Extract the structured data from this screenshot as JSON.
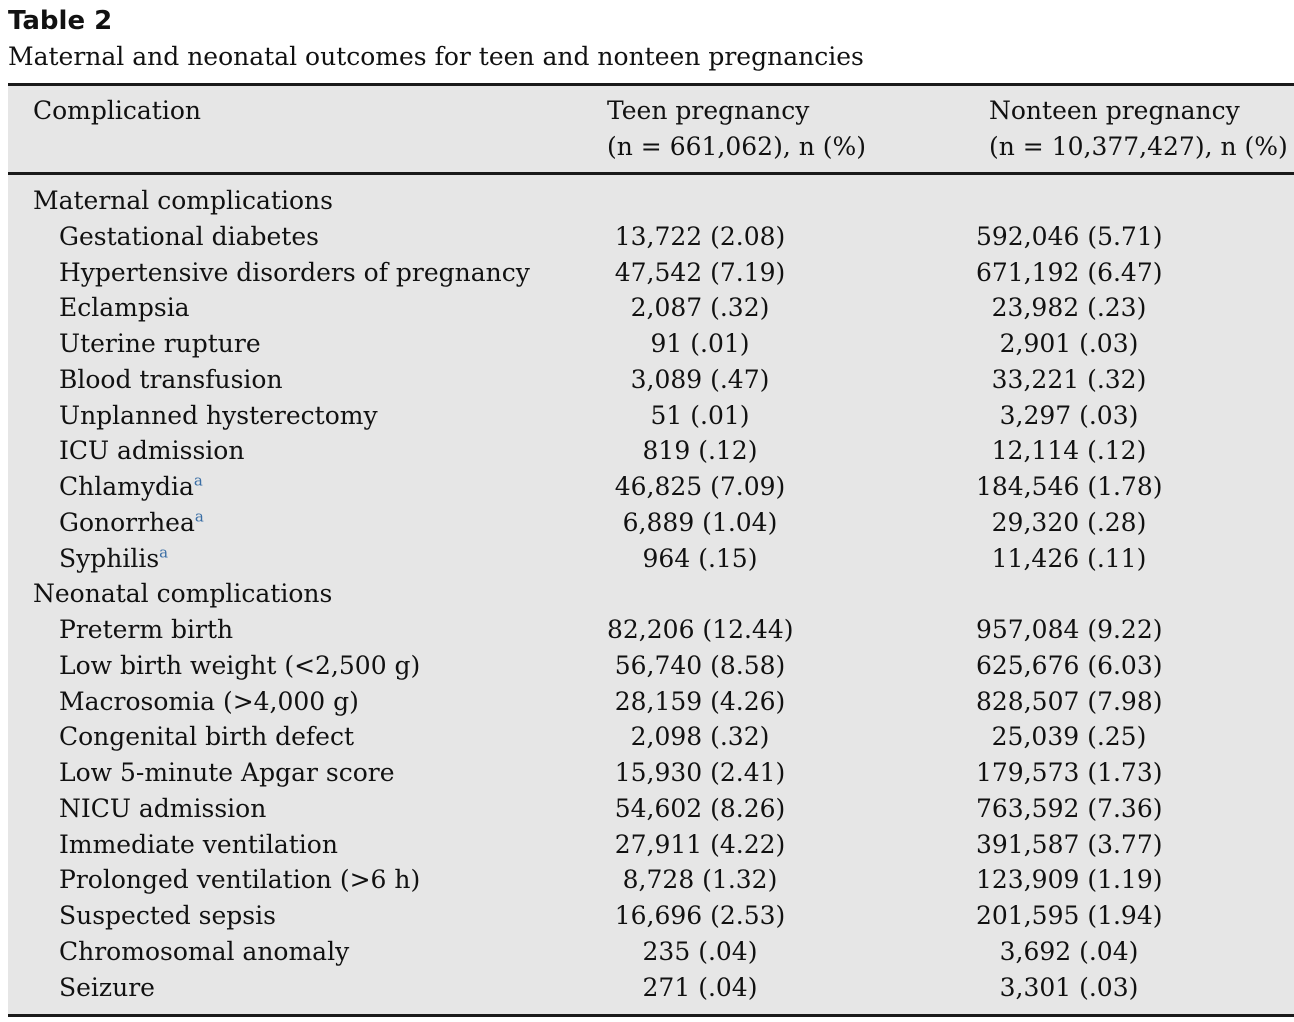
{
  "caption": {
    "label": "Table 2",
    "title": "Maternal and neonatal outcomes for teen and nonteen pregnancies"
  },
  "header": {
    "col1": "Complication",
    "col2_line1": "Teen pregnancy",
    "col2_line2": "(n = 661,062), n (%)",
    "col3_line1": "Nonteen pregnancy",
    "col3_line2": "(n = 10,377,427), n (%)"
  },
  "footnote_marker": "a",
  "sections": [
    {
      "title": "Maternal complications",
      "rows": [
        {
          "label": "Gestational diabetes",
          "teen": "13,722 (2.08)",
          "nonteen": "592,046 (5.71)"
        },
        {
          "label": "Hypertensive disorders of pregnancy",
          "teen": "47,542 (7.19)",
          "nonteen": "671,192 (6.47)"
        },
        {
          "label": "Eclampsia",
          "teen": "2,087 (.32)",
          "nonteen": "23,982 (.23)"
        },
        {
          "label": "Uterine rupture",
          "teen": "91 (.01)",
          "nonteen": "2,901 (.03)"
        },
        {
          "label": "Blood transfusion",
          "teen": "3,089 (.47)",
          "nonteen": "33,221 (.32)"
        },
        {
          "label": "Unplanned hysterectomy",
          "teen": "51 (.01)",
          "nonteen": "3,297 (.03)"
        },
        {
          "label": "ICU admission",
          "teen": "819 (.12)",
          "nonteen": "12,114 (.12)"
        },
        {
          "label": "Chlamydia",
          "teen": "46,825 (7.09)",
          "nonteen": "184,546 (1.78)"
        },
        {
          "label": "Gonorrhea",
          "teen": "6,889 (1.04)",
          "nonteen": "29,320 (.28)"
        },
        {
          "label": "Syphilis",
          "teen": "964 (.15)",
          "nonteen": "11,426 (.11)"
        }
      ]
    },
    {
      "title": "Neonatal complications",
      "rows": [
        {
          "label": "Preterm birth",
          "teen": "82,206 (12.44)",
          "nonteen": "957,084 (9.22)"
        },
        {
          "label": "Low birth weight (<2,500 g)",
          "teen": "56,740 (8.58)",
          "nonteen": "625,676 (6.03)"
        },
        {
          "label": "Macrosomia (>4,000 g)",
          "teen": "28,159 (4.26)",
          "nonteen": "828,507 (7.98)"
        },
        {
          "label": "Congenital birth defect",
          "teen": "2,098 (.32)",
          "nonteen": "25,039 (.25)"
        },
        {
          "label": "Low 5-minute Apgar score",
          "teen": "15,930 (2.41)",
          "nonteen": "179,573 (1.73)"
        },
        {
          "label": "NICU admission",
          "teen": "54,602 (8.26)",
          "nonteen": "763,592 (7.36)"
        },
        {
          "label": "Immediate ventilation",
          "teen": "27,911 (4.22)",
          "nonteen": "391,587 (3.77)"
        },
        {
          "label": "Prolonged ventilation (>6 h)",
          "teen": "8,728 (1.32)",
          "nonteen": "123,909 (1.19)"
        },
        {
          "label": "Suspected sepsis",
          "teen": "16,696 (2.53)",
          "nonteen": "201,595 (1.94)"
        },
        {
          "label": "Chromosomal anomaly",
          "teen": "235 (.04)",
          "nonteen": "3,692 (.04)"
        },
        {
          "label": "Seizure",
          "teen": "271 (.04)",
          "nonteen": "3,301 (.03)"
        }
      ]
    }
  ]
}
